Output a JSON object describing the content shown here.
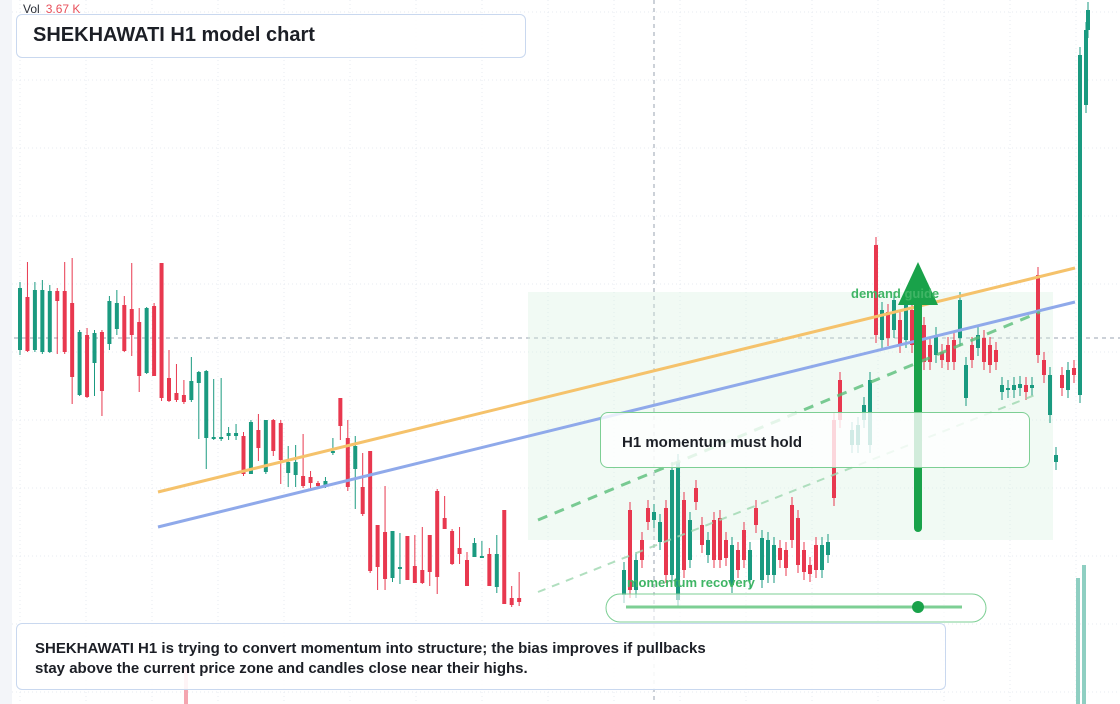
{
  "title": "SHEKHAWATI H1 model chart",
  "volume": {
    "label": "Vol",
    "value": "3.67 K"
  },
  "note": {
    "line1": "SHEKHAWATI H1 is trying to convert momentum into structure; the bias improves if pullbacks",
    "line2": "stay above the current price zone and candles close near their highs."
  },
  "callout": "H1 momentum must hold",
  "labels": {
    "demand": "demand guide",
    "momentum": "momentum recovery"
  },
  "colors": {
    "up": "#1a9a80",
    "down": "#e8384f",
    "arrow": "#19a24a",
    "orange_line": "#f5c26b",
    "blue_line": "#8fa9ea",
    "guide_green": "#5bbf7a"
  },
  "chart_data": {
    "type": "candlestick",
    "candles": [
      [
        "up",
        350,
        288,
        355,
        282
      ],
      [
        "down",
        297,
        351,
        352,
        262
      ],
      [
        "up",
        350,
        290,
        352,
        282
      ],
      [
        "up",
        352,
        290,
        354,
        280
      ],
      [
        "up",
        352,
        291,
        353,
        285
      ],
      [
        "down",
        291,
        301,
        354,
        288
      ],
      [
        "down",
        291,
        352,
        354,
        262
      ],
      [
        "down",
        303,
        377,
        404,
        258
      ],
      [
        "up",
        395,
        332,
        396,
        330
      ],
      [
        "down",
        335,
        397,
        398,
        328
      ],
      [
        "up",
        363,
        333,
        396,
        330
      ],
      [
        "down",
        332,
        391,
        416,
        330
      ],
      [
        "up",
        344,
        301,
        350,
        296
      ],
      [
        "up",
        329,
        303,
        335,
        290
      ],
      [
        "down",
        305,
        351,
        352,
        296
      ],
      [
        "down",
        309,
        335,
        356,
        263
      ],
      [
        "down",
        322,
        376,
        392,
        308
      ],
      [
        "up",
        373,
        308,
        374,
        307
      ],
      [
        "down",
        306,
        376,
        376,
        303
      ],
      [
        "down",
        263,
        398,
        401,
        263
      ],
      [
        "down",
        378,
        401,
        402,
        350
      ],
      [
        "down",
        393,
        400,
        402,
        364
      ],
      [
        "down",
        395,
        402,
        404,
        380
      ],
      [
        "up",
        400,
        381,
        402,
        357
      ],
      [
        "up",
        383,
        372,
        439,
        371
      ],
      [
        "up",
        438,
        371,
        469,
        370
      ],
      [
        "up",
        438,
        437,
        440,
        379
      ],
      [
        "up",
        437,
        437,
        441,
        378
      ],
      [
        "up",
        436,
        433,
        440,
        427
      ],
      [
        "up",
        436,
        433,
        440,
        424
      ],
      [
        "down",
        436,
        474,
        476,
        432
      ],
      [
        "up",
        474,
        422,
        474,
        420
      ],
      [
        "down",
        448,
        430,
        461,
        414
      ],
      [
        "up",
        472,
        420,
        474,
        421
      ],
      [
        "down",
        420,
        451,
        456,
        419
      ],
      [
        "down",
        423,
        460,
        484,
        420
      ],
      [
        "up",
        462,
        473,
        487,
        446
      ],
      [
        "up",
        462,
        475,
        487,
        445
      ],
      [
        "down",
        476,
        486,
        488,
        434
      ],
      [
        "down",
        477,
        483,
        489,
        471
      ],
      [
        "down",
        483,
        486,
        488,
        481
      ],
      [
        "up",
        485,
        481,
        488,
        477
      ],
      [
        "up",
        453,
        451,
        455,
        438
      ],
      [
        "down",
        398,
        426,
        440,
        398
      ],
      [
        "down",
        438,
        487,
        491,
        420
      ],
      [
        "up",
        469,
        446,
        509,
        436
      ],
      [
        "down",
        487,
        514,
        516,
        453
      ],
      [
        "down",
        451,
        571,
        573,
        451
      ],
      [
        "down",
        525,
        567,
        590,
        532
      ],
      [
        "down",
        532,
        579,
        590,
        486
      ],
      [
        "up",
        578,
        531,
        582,
        531
      ],
      [
        "up",
        567,
        567,
        584,
        533
      ],
      [
        "down",
        536,
        580,
        580,
        540
      ],
      [
        "down",
        566,
        583,
        583,
        535
      ],
      [
        "down",
        570,
        583,
        584,
        527
      ],
      [
        "down",
        535,
        572,
        586,
        535
      ],
      [
        "down",
        491,
        577,
        594,
        489
      ],
      [
        "down",
        518,
        529,
        529,
        496
      ],
      [
        "down",
        531,
        564,
        565,
        529
      ],
      [
        "down",
        548,
        554,
        564,
        527
      ],
      [
        "down",
        560,
        586,
        586,
        552
      ],
      [
        "up",
        557,
        543,
        557,
        538
      ],
      [
        "up",
        556,
        557,
        557,
        541
      ],
      [
        "down",
        554,
        586,
        586,
        548
      ],
      [
        "up",
        587,
        554,
        593,
        535
      ],
      [
        "down",
        510,
        604,
        604,
        510
      ],
      [
        "down",
        598,
        605,
        607,
        586
      ],
      [
        "down",
        598,
        602,
        606,
        572
      ]
    ],
    "lines": [
      {
        "from": [
          158,
          492
        ],
        "to": [
          1075,
          268
        ]
      },
      {
        "from": [
          158,
          527
        ],
        "to": [
          1075,
          302
        ]
      }
    ]
  }
}
